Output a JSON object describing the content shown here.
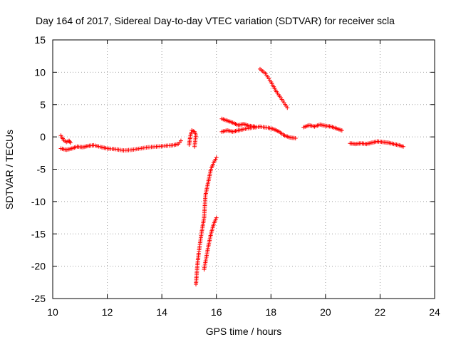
{
  "chart_data": {
    "type": "scatter",
    "title": "Day 164 of 2017, Sidereal Day-to-day VTEC variation (SDTVAR) for receiver scla",
    "xlabel": "GPS time / hours",
    "ylabel": "SDTVAR / TECUs",
    "xlim": [
      10,
      24
    ],
    "ylim": [
      -25,
      15
    ],
    "xticks": [
      10,
      12,
      14,
      16,
      18,
      20,
      22,
      24
    ],
    "yticks": [
      -25,
      -20,
      -15,
      -10,
      -5,
      0,
      5,
      10,
      15
    ],
    "grid": true,
    "marker": "plus",
    "color": "#ff0000",
    "segments": [
      {
        "name": "arc-1a",
        "points": [
          [
            10.3,
            -1.8
          ],
          [
            10.5,
            -2.0
          ],
          [
            10.7,
            -1.8
          ],
          [
            10.9,
            -1.5
          ],
          [
            11.1,
            -1.6
          ],
          [
            11.3,
            -1.4
          ],
          [
            11.5,
            -1.3
          ],
          [
            11.8,
            -1.6
          ],
          [
            12.0,
            -1.8
          ],
          [
            12.3,
            -1.9
          ],
          [
            12.6,
            -2.1
          ],
          [
            12.9,
            -2.0
          ],
          [
            13.2,
            -1.8
          ],
          [
            13.5,
            -1.6
          ],
          [
            13.8,
            -1.5
          ],
          [
            14.1,
            -1.4
          ],
          [
            14.4,
            -1.3
          ],
          [
            14.6,
            -1.1
          ],
          [
            14.7,
            -0.6
          ]
        ]
      },
      {
        "name": "arc-1b",
        "points": [
          [
            10.3,
            0.2
          ],
          [
            10.4,
            -0.5
          ],
          [
            10.5,
            -0.8
          ],
          [
            10.6,
            -0.6
          ],
          [
            10.65,
            -0.9
          ]
        ]
      },
      {
        "name": "arc-2",
        "points": [
          [
            15.0,
            -1.2
          ],
          [
            15.05,
            0.2
          ],
          [
            15.1,
            1.0
          ],
          [
            15.2,
            0.8
          ],
          [
            15.25,
            0.3
          ],
          [
            15.2,
            -1.5
          ]
        ]
      },
      {
        "name": "arc-3a",
        "points": [
          [
            15.25,
            -22.8
          ],
          [
            15.3,
            -20.0
          ],
          [
            15.35,
            -18.0
          ],
          [
            15.45,
            -15.0
          ],
          [
            15.55,
            -12.5
          ],
          [
            15.6,
            -9.0
          ],
          [
            15.7,
            -7.0
          ],
          [
            15.8,
            -5.0
          ],
          [
            15.9,
            -4.0
          ],
          [
            16.0,
            -3.2
          ]
        ]
      },
      {
        "name": "arc-3b",
        "points": [
          [
            15.55,
            -20.5
          ],
          [
            15.7,
            -17.0
          ],
          [
            15.8,
            -15.0
          ],
          [
            15.9,
            -13.5
          ],
          [
            16.0,
            -12.5
          ]
        ]
      },
      {
        "name": "arc-4a",
        "points": [
          [
            16.2,
            2.8
          ],
          [
            16.4,
            2.5
          ],
          [
            16.6,
            2.2
          ],
          [
            16.8,
            1.8
          ],
          [
            17.0,
            2.0
          ],
          [
            17.2,
            1.7
          ],
          [
            17.4,
            1.6
          ]
        ]
      },
      {
        "name": "arc-4b",
        "points": [
          [
            16.2,
            0.8
          ],
          [
            16.4,
            1.0
          ],
          [
            16.6,
            0.8
          ],
          [
            16.8,
            1.0
          ],
          [
            17.0,
            1.2
          ],
          [
            17.3,
            1.4
          ],
          [
            17.6,
            1.6
          ],
          [
            17.9,
            1.4
          ],
          [
            18.1,
            1.2
          ],
          [
            18.3,
            0.8
          ],
          [
            18.5,
            0.2
          ],
          [
            18.7,
            -0.1
          ],
          [
            18.9,
            -0.2
          ]
        ]
      },
      {
        "name": "arc-5",
        "points": [
          [
            17.6,
            10.5
          ],
          [
            17.8,
            9.8
          ],
          [
            18.0,
            8.5
          ],
          [
            18.2,
            7.0
          ],
          [
            18.4,
            5.8
          ],
          [
            18.6,
            4.5
          ]
        ]
      },
      {
        "name": "arc-6",
        "points": [
          [
            19.2,
            1.5
          ],
          [
            19.4,
            1.8
          ],
          [
            19.6,
            1.6
          ],
          [
            19.8,
            1.9
          ],
          [
            20.0,
            1.7
          ],
          [
            20.2,
            1.6
          ],
          [
            20.4,
            1.3
          ],
          [
            20.6,
            1.0
          ]
        ]
      },
      {
        "name": "arc-7",
        "points": [
          [
            20.9,
            -1.0
          ],
          [
            21.1,
            -1.1
          ],
          [
            21.3,
            -1.0
          ],
          [
            21.5,
            -1.1
          ],
          [
            21.7,
            -0.9
          ],
          [
            21.9,
            -0.7
          ],
          [
            22.1,
            -0.8
          ],
          [
            22.3,
            -0.9
          ],
          [
            22.5,
            -1.1
          ],
          [
            22.7,
            -1.3
          ],
          [
            22.85,
            -1.5
          ]
        ]
      }
    ]
  }
}
